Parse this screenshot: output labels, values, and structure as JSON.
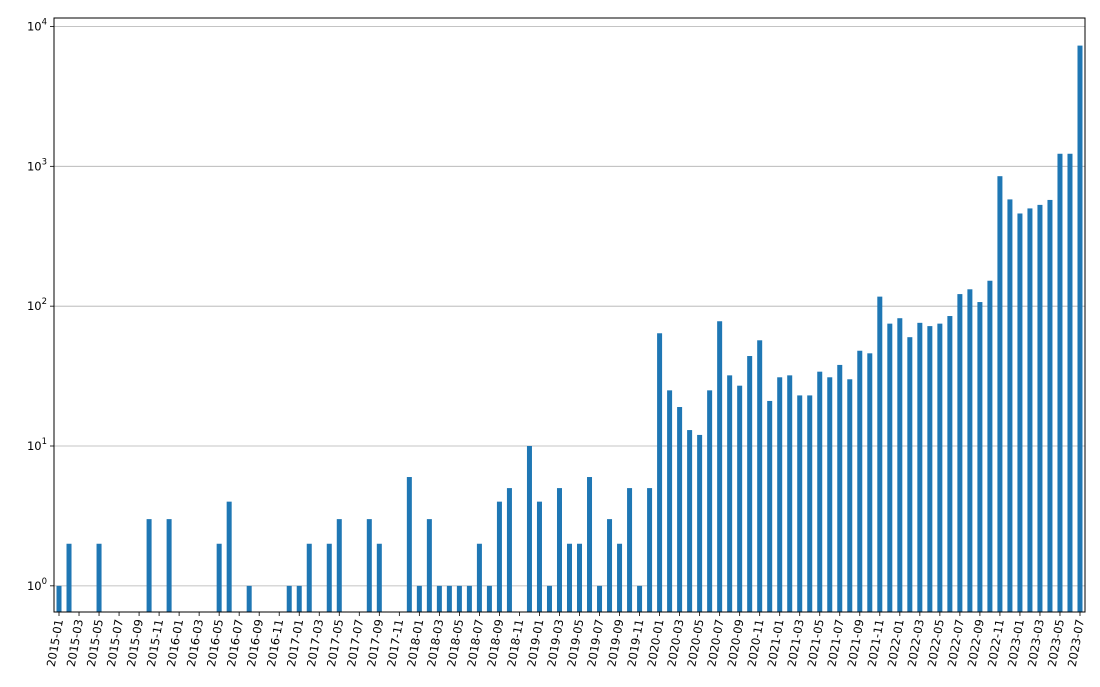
{
  "chart_data": {
    "type": "bar",
    "title": "",
    "xlabel": "",
    "ylabel": "",
    "yscale": "log",
    "ylim": [
      0.65,
      11500
    ],
    "grid": "horizontal",
    "bar_color": "#1f77b4",
    "categories": [
      "2015-01",
      "2015-02",
      "2015-03",
      "2015-04",
      "2015-05",
      "2015-06",
      "2015-07",
      "2015-08",
      "2015-09",
      "2015-10",
      "2015-11",
      "2015-12",
      "2016-01",
      "2016-02",
      "2016-03",
      "2016-04",
      "2016-05",
      "2016-06",
      "2016-07",
      "2016-08",
      "2016-09",
      "2016-10",
      "2016-11",
      "2016-12",
      "2017-01",
      "2017-02",
      "2017-03",
      "2017-04",
      "2017-05",
      "2017-06",
      "2017-07",
      "2017-08",
      "2017-09",
      "2017-10",
      "2017-11",
      "2017-12",
      "2018-01",
      "2018-02",
      "2018-03",
      "2018-04",
      "2018-05",
      "2018-06",
      "2018-07",
      "2018-08",
      "2018-09",
      "2018-10",
      "2018-11",
      "2018-12",
      "2019-01",
      "2019-02",
      "2019-03",
      "2019-04",
      "2019-05",
      "2019-06",
      "2019-07",
      "2019-08",
      "2019-09",
      "2019-10",
      "2019-11",
      "2019-12",
      "2020-01",
      "2020-02",
      "2020-03",
      "2020-04",
      "2020-05",
      "2020-06",
      "2020-07",
      "2020-08",
      "2020-09",
      "2020-10",
      "2020-11",
      "2020-12",
      "2021-01",
      "2021-02",
      "2021-03",
      "2021-04",
      "2021-05",
      "2021-06",
      "2021-07",
      "2021-08",
      "2021-09",
      "2021-10",
      "2021-11",
      "2021-12",
      "2022-01",
      "2022-02",
      "2022-03",
      "2022-04",
      "2022-05",
      "2022-06",
      "2022-07",
      "2022-08",
      "2022-09",
      "2022-10",
      "2022-11",
      "2022-12",
      "2023-01",
      "2023-02",
      "2023-03",
      "2023-04",
      "2023-05",
      "2023-06",
      "2023-07"
    ],
    "values": [
      1,
      2,
      null,
      null,
      2,
      null,
      null,
      null,
      null,
      3,
      null,
      3,
      null,
      null,
      null,
      null,
      2,
      4,
      null,
      1,
      null,
      null,
      null,
      1,
      1,
      2,
      null,
      2,
      3,
      null,
      null,
      3,
      2,
      null,
      null,
      6,
      1,
      3,
      1,
      1,
      1,
      1,
      2,
      1,
      4,
      5,
      null,
      10,
      4,
      1,
      5,
      2,
      2,
      6,
      1,
      3,
      2,
      5,
      1,
      5,
      64,
      25,
      19,
      13,
      12,
      25,
      78,
      32,
      27,
      44,
      57,
      21,
      31,
      32,
      23,
      23,
      34,
      31,
      38,
      30,
      48,
      46,
      117,
      75,
      82,
      60,
      76,
      72,
      75,
      85,
      122,
      132,
      107,
      152,
      850,
      580,
      460,
      500,
      530,
      575,
      1230,
      1230,
      7300
    ],
    "xtick_labels": [
      "2015-01",
      "2015-03",
      "2015-05",
      "2015-07",
      "2015-09",
      "2015-11",
      "2016-01",
      "2016-03",
      "2016-05",
      "2016-07",
      "2016-09",
      "2016-11",
      "2017-01",
      "2017-03",
      "2017-05",
      "2017-07",
      "2017-09",
      "2017-11",
      "2018-01",
      "2018-03",
      "2018-05",
      "2018-07",
      "2018-09",
      "2018-11",
      "2019-01",
      "2019-03",
      "2019-05",
      "2019-07",
      "2019-09",
      "2019-11",
      "2020-01",
      "2020-03",
      "2020-05",
      "2020-07",
      "2020-09",
      "2020-11",
      "2021-01",
      "2021-03",
      "2021-05",
      "2021-07",
      "2021-09",
      "2021-11",
      "2022-01",
      "2022-03",
      "2022-05",
      "2022-07",
      "2022-09",
      "2022-11",
      "2023-01",
      "2023-03",
      "2023-05",
      "2023-07"
    ],
    "ytick_labels": [
      {
        "value": 1,
        "base": "10",
        "exp": "0"
      },
      {
        "value": 10,
        "base": "10",
        "exp": "1"
      },
      {
        "value": 100,
        "base": "10",
        "exp": "2"
      },
      {
        "value": 1000,
        "base": "10",
        "exp": "3"
      },
      {
        "value": 10000,
        "base": "10",
        "exp": "4"
      }
    ]
  }
}
